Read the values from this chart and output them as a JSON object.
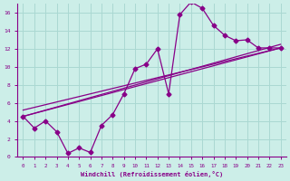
{
  "xlabel": "Windchill (Refroidissement éolien,°C)",
  "bg_color": "#cceee8",
  "grid_color": "#aad8d2",
  "line_color": "#880088",
  "xlim": [
    -0.5,
    23.5
  ],
  "ylim": [
    0,
    17
  ],
  "xticks": [
    0,
    1,
    2,
    3,
    4,
    5,
    6,
    7,
    8,
    9,
    10,
    11,
    12,
    13,
    14,
    15,
    16,
    17,
    18,
    19,
    20,
    21,
    22,
    23
  ],
  "yticks": [
    0,
    2,
    4,
    6,
    8,
    10,
    12,
    14,
    16
  ],
  "zigzag_x": [
    0,
    1,
    2,
    3,
    4,
    5,
    6,
    7,
    8,
    9,
    10,
    11,
    12,
    13,
    14,
    15,
    16,
    17,
    18,
    19,
    20,
    21,
    22,
    23
  ],
  "zigzag_y": [
    4.5,
    3.2,
    4.0,
    2.8,
    0.4,
    1.0,
    0.5,
    3.5,
    4.7,
    7.0,
    9.8,
    10.3,
    12.0,
    7.0,
    15.8,
    17.2,
    16.5,
    14.6,
    13.5,
    12.9,
    13.0,
    12.1,
    12.1,
    12.1
  ],
  "straight_lines": [
    {
      "x0": 0,
      "y0": 4.5,
      "x1": 23,
      "y1": 12.1
    },
    {
      "x0": 0,
      "y0": 4.5,
      "x1": 23,
      "y1": 12.5
    },
    {
      "x0": 0,
      "y0": 5.2,
      "x1": 23,
      "y1": 12.1
    }
  ]
}
